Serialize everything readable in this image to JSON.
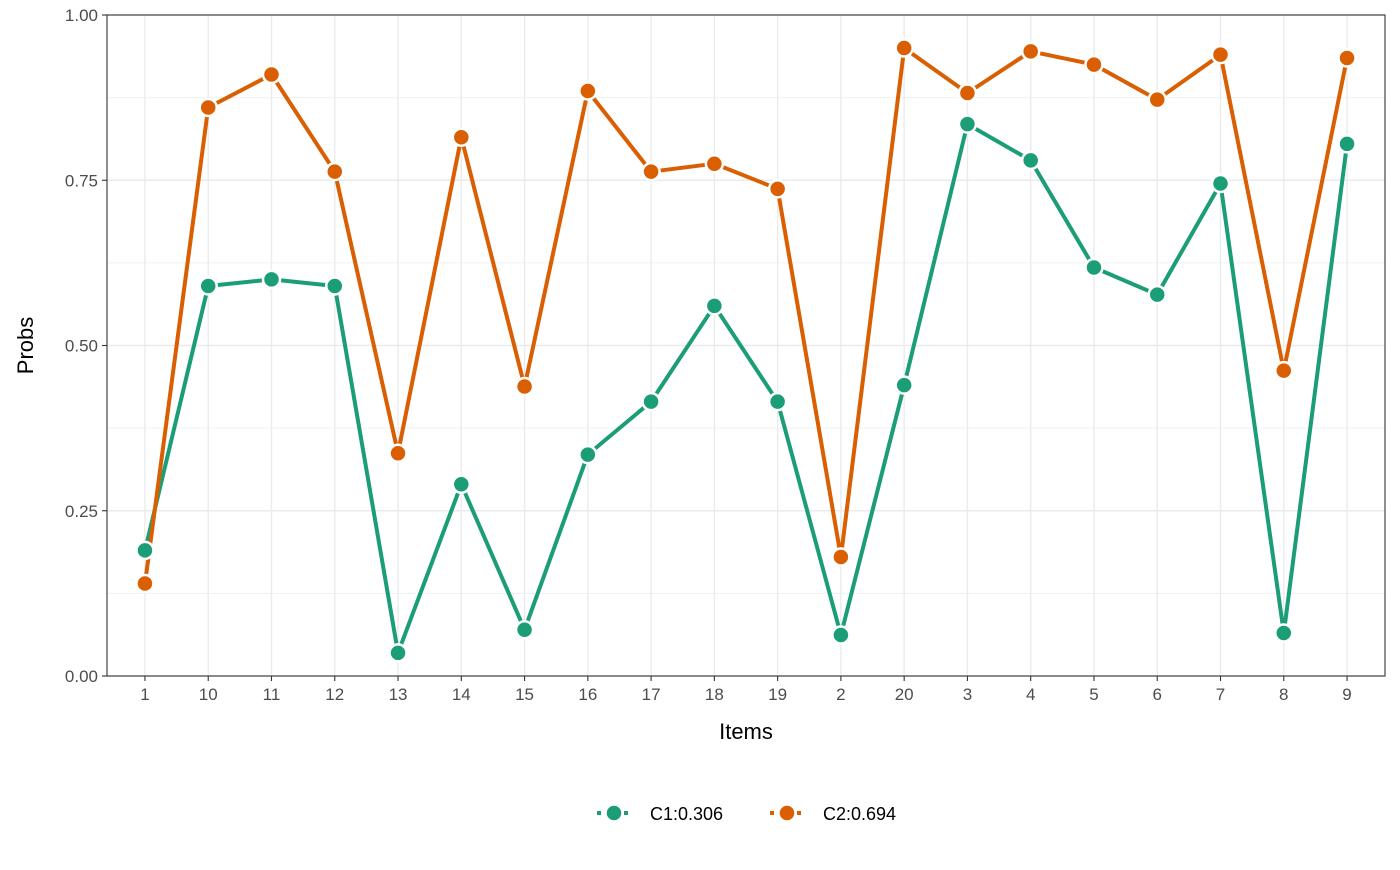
{
  "chart_data": {
    "type": "line",
    "title": "",
    "xlabel": "Items",
    "ylabel": "Probs",
    "categories": [
      "1",
      "10",
      "11",
      "12",
      "13",
      "14",
      "15",
      "16",
      "17",
      "18",
      "19",
      "2",
      "20",
      "3",
      "4",
      "5",
      "6",
      "7",
      "8",
      "9"
    ],
    "ylim": [
      0,
      1
    ],
    "yticks": [
      0,
      0.25,
      0.5,
      0.75,
      1
    ],
    "ytick_labels": [
      "0.00",
      "0.25",
      "0.50",
      "0.75",
      "1.00"
    ],
    "grid": true,
    "legend_position": "bottom",
    "series": [
      {
        "name": "C1:0.306",
        "color": "#1b9e77",
        "values": [
          0.19,
          0.59,
          0.6,
          0.59,
          0.035,
          0.29,
          0.07,
          0.335,
          0.415,
          0.56,
          0.415,
          0.062,
          0.44,
          0.835,
          0.78,
          0.618,
          0.577,
          0.745,
          0.065,
          0.805
        ]
      },
      {
        "name": "C2:0.694",
        "color": "#d95f02",
        "values": [
          0.14,
          0.86,
          0.91,
          0.763,
          0.337,
          0.815,
          0.438,
          0.885,
          0.763,
          0.775,
          0.737,
          0.18,
          0.95,
          0.882,
          0.945,
          0.925,
          0.872,
          0.94,
          0.462,
          0.935
        ]
      }
    ]
  }
}
